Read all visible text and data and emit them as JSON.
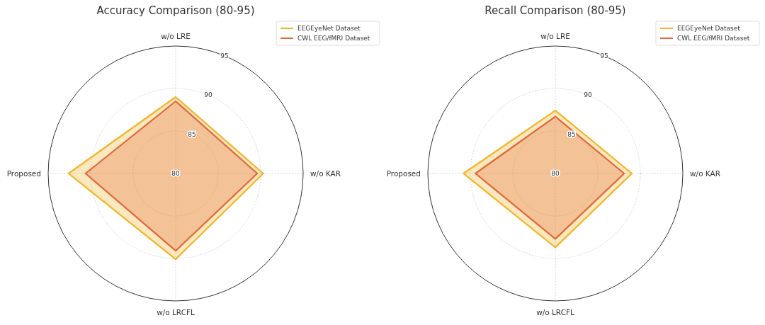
{
  "chart_data": [
    {
      "type": "radar",
      "title": "Accuracy Comparison (80-95)",
      "categories": [
        "w/o LRE",
        "w/o KAR",
        "w/o LRCFL",
        "Proposed"
      ],
      "series": [
        {
          "name": "EEGEyeNet Dataset",
          "color": "#f2b42a",
          "values": [
            89.0,
            90.3,
            90.1,
            92.6
          ]
        },
        {
          "name": "CWL EEG/fMRI Dataset",
          "color": "#e0693a",
          "values": [
            88.5,
            89.6,
            89.1,
            90.6
          ]
        }
      ],
      "ylim": [
        80,
        95
      ],
      "yticks": [
        80,
        85,
        90,
        95
      ],
      "grid": true,
      "legend": "top right"
    },
    {
      "type": "radar",
      "title": "Recall Comparison (80-95)",
      "categories": [
        "w/o LRE",
        "w/o KAR",
        "w/o LRCFL",
        "Proposed"
      ],
      "series": [
        {
          "name": "EEGEyeNet Dataset",
          "color": "#f2b42a",
          "values": [
            87.4,
            89.0,
            88.7,
            90.8
          ]
        },
        {
          "name": "CWL EEG/fMRI Dataset",
          "color": "#e0693a",
          "values": [
            86.7,
            88.1,
            87.7,
            89.4
          ]
        }
      ],
      "ylim": [
        80,
        95
      ],
      "yticks": [
        80,
        85,
        90,
        95
      ],
      "grid": true,
      "legend": "top right"
    }
  ]
}
